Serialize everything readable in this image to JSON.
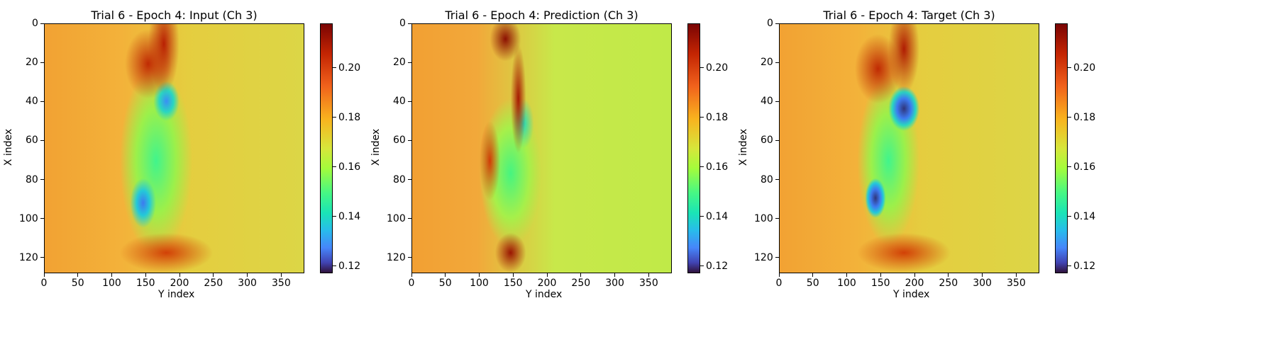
{
  "chart_data": [
    {
      "type": "heatmap",
      "title": "Trial 6 - Epoch 4: Input (Ch 3)",
      "xlabel": "Y index",
      "ylabel": "X index",
      "xlim": [
        0,
        384
      ],
      "ylim": [
        128,
        0
      ],
      "xticks": [
        0,
        50,
        100,
        150,
        200,
        250,
        300,
        350
      ],
      "yticks": [
        0,
        20,
        40,
        60,
        80,
        100,
        120
      ],
      "colorbar": {
        "range": [
          0.117,
          0.218
        ],
        "ticks": [
          "0.12",
          "0.14",
          "0.16",
          "0.18",
          "0.20"
        ],
        "colormap": "turbo"
      }
    },
    {
      "type": "heatmap",
      "title": "Trial 6 - Epoch 4: Prediction (Ch 3)",
      "xlabel": "Y index",
      "ylabel": "X index",
      "xlim": [
        0,
        384
      ],
      "ylim": [
        128,
        0
      ],
      "xticks": [
        0,
        50,
        100,
        150,
        200,
        250,
        300,
        350
      ],
      "yticks": [
        0,
        20,
        40,
        60,
        80,
        100,
        120
      ],
      "colorbar": {
        "range": [
          0.117,
          0.218
        ],
        "ticks": [
          "0.12",
          "0.14",
          "0.16",
          "0.18",
          "0.20"
        ],
        "colormap": "turbo"
      }
    },
    {
      "type": "heatmap",
      "title": "Trial 6 - Epoch 4: Target (Ch 3)",
      "xlabel": "Y index",
      "ylabel": "X index",
      "xlim": [
        0,
        384
      ],
      "ylim": [
        128,
        0
      ],
      "xticks": [
        0,
        50,
        100,
        150,
        200,
        250,
        300,
        350
      ],
      "yticks": [
        0,
        20,
        40,
        60,
        80,
        100,
        120
      ],
      "colorbar": {
        "range": [
          0.117,
          0.218
        ],
        "ticks": [
          "0.12",
          "0.14",
          "0.16",
          "0.18",
          "0.20"
        ],
        "colormap": "turbo"
      }
    }
  ]
}
